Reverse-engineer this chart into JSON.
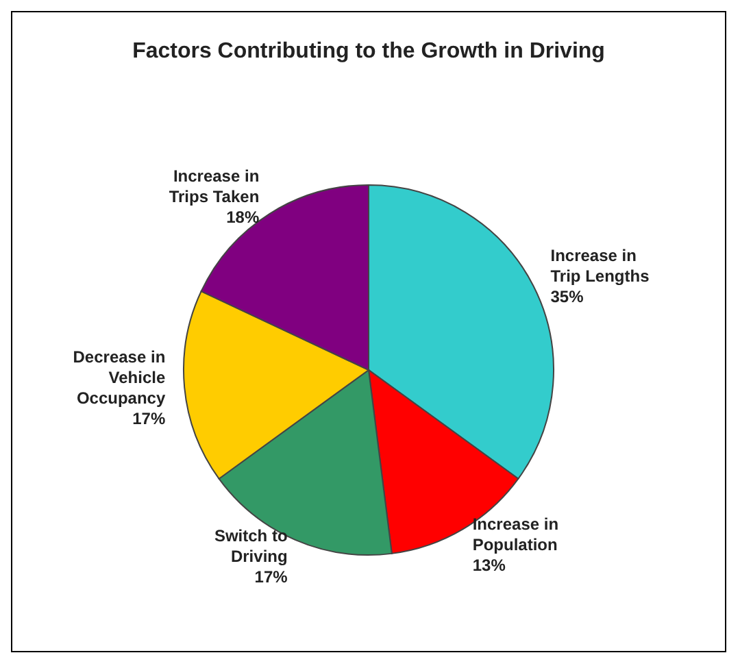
{
  "chart_data": {
    "type": "pie",
    "title": "Factors Contributing to the Growth in Driving",
    "categories": [
      "Increase in Trip Lengths",
      "Increase in Population",
      "Switch to Driving",
      "Decrease in Vehicle Occupancy",
      "Increase in Trips Taken"
    ],
    "values": [
      35,
      13,
      17,
      17,
      18
    ],
    "value_labels": [
      "35%",
      "13%",
      "17%",
      "17%",
      "18%"
    ],
    "colors": [
      "#33cccc",
      "#ff0000",
      "#339966",
      "#ffcc00",
      "#800080"
    ]
  }
}
